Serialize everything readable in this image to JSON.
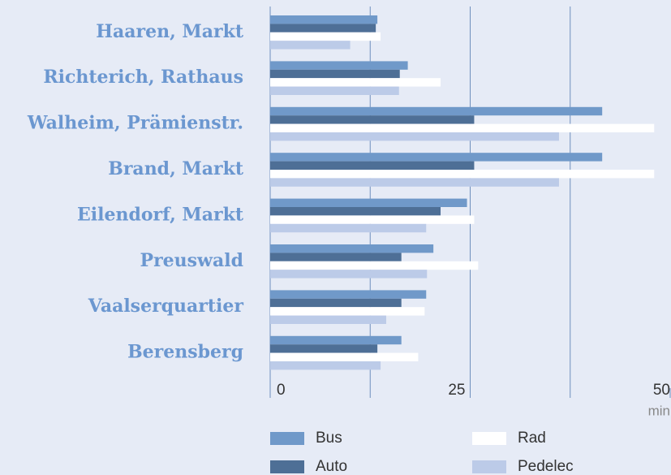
{
  "chart_data": {
    "type": "hbar",
    "categories": [
      "Haaren, Markt",
      "Richterich, Rathaus",
      "Walheim, Prämienstr.",
      "Brand, Markt",
      "Eilendorf, Markt",
      "Preuswald",
      "Vaalserquartier",
      "Berensberg"
    ],
    "series": [
      {
        "name": "Bus",
        "color": "#7099c9",
        "values": [
          13.4,
          17.2,
          41.5,
          41.5,
          24.6,
          20.4,
          19.5,
          16.4
        ]
      },
      {
        "name": "Auto",
        "color": "#4e6f96",
        "values": [
          13.2,
          16.2,
          25.5,
          25.5,
          21.3,
          16.4,
          16.4,
          13.4
        ]
      },
      {
        "name": "Rad",
        "color": "#ffffff",
        "values": [
          13.8,
          21.3,
          48.0,
          48.0,
          25.5,
          26.0,
          19.3,
          18.5
        ]
      },
      {
        "name": "Pedelec",
        "color": "#bccbe8",
        "values": [
          10.0,
          16.1,
          36.1,
          36.1,
          19.5,
          19.6,
          14.5,
          13.8
        ]
      }
    ],
    "xlim": [
      0,
      50
    ],
    "xticks": [
      0,
      25,
      50
    ],
    "gridlines": [
      12.5,
      25,
      37.5
    ],
    "xlabel": "min"
  }
}
